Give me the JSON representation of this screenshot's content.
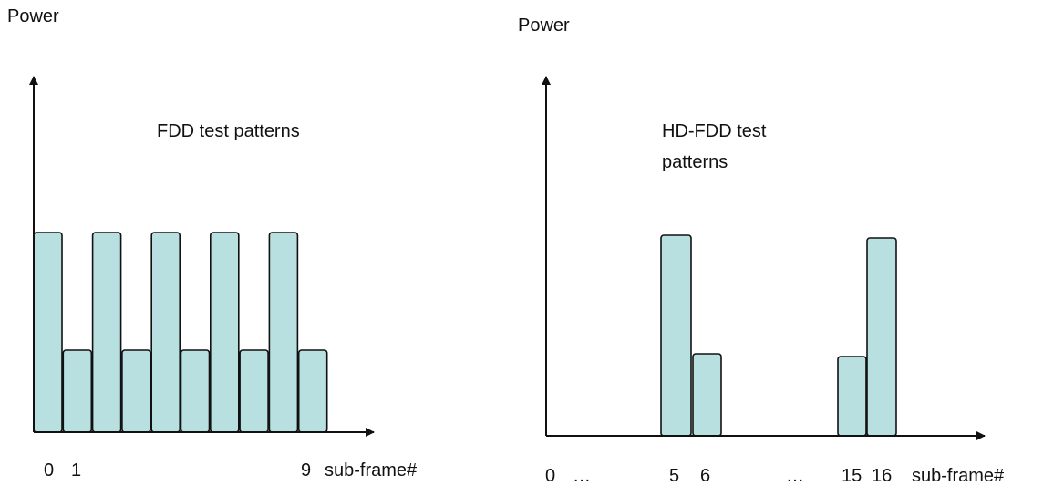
{
  "colors": {
    "bar_fill": "#b9e0e0",
    "stroke": "#111111",
    "background": "#ffffff"
  },
  "left_panel": {
    "y_axis_label": "Power",
    "title": "FDD test patterns",
    "x_labels": [
      "0",
      "1",
      "9"
    ],
    "x_axis_label": "sub-frame#",
    "bar_levels": [
      "high",
      "low",
      "high",
      "low",
      "high",
      "low",
      "high",
      "low",
      "high",
      "low"
    ]
  },
  "right_panel": {
    "y_axis_label": "Power",
    "title_line1": "HD-FDD test",
    "title_line2": "patterns",
    "x_labels": [
      "0",
      "…",
      "5",
      "6",
      "…",
      "15",
      "16"
    ],
    "x_axis_label": "sub-frame#",
    "bar_levels": [
      "high",
      "low",
      "low",
      "high"
    ]
  }
}
